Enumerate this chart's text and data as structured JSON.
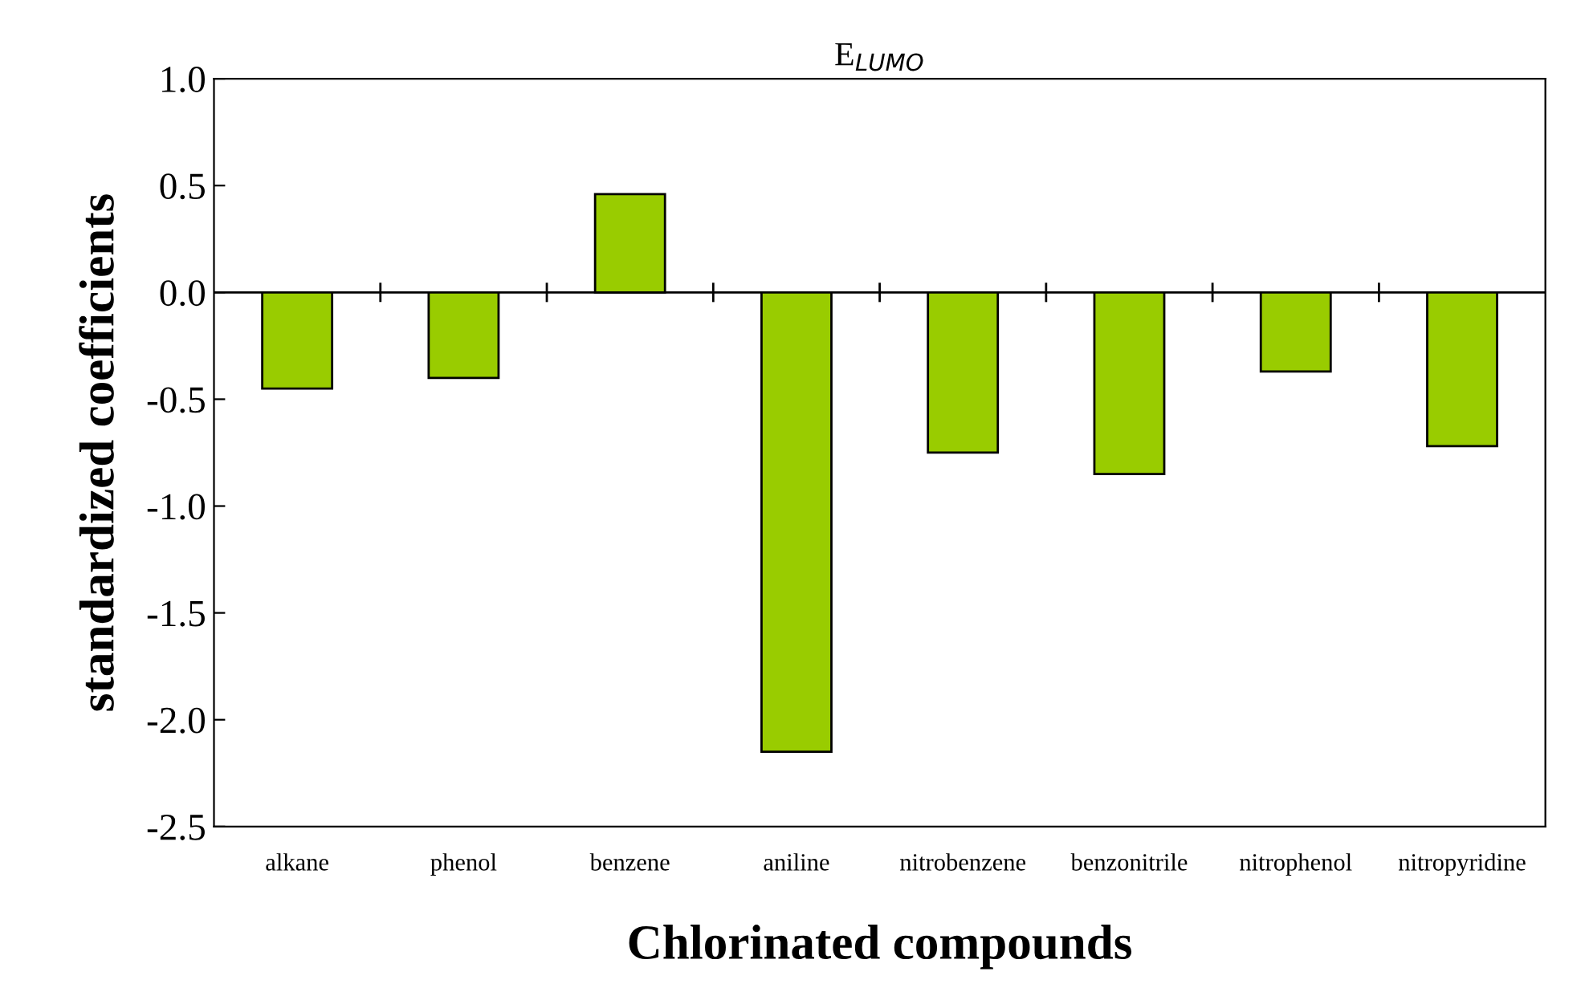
{
  "chart_data": {
    "type": "bar",
    "title": "E$_{LUMO}$",
    "xlabel": "Chlorinated compounds",
    "ylabel": "standardized coefficients",
    "categories": [
      "alkane",
      "phenol",
      "benzene",
      "aniline",
      "nitrobenzene",
      "benzonitrile",
      "nitrophenol",
      "nitropyridine"
    ],
    "values": [
      -0.45,
      -0.4,
      0.46,
      -2.15,
      -0.75,
      -0.85,
      -0.37,
      -0.72
    ],
    "color": "#99cc00",
    "ylim": [
      -2.5,
      1.0
    ],
    "yticks": [
      {
        "value": -2.5,
        "label": "-2.5"
      },
      {
        "value": -2.0,
        "label": "-2.0"
      },
      {
        "value": -1.5,
        "label": "-1.5"
      },
      {
        "value": -1.0,
        "label": "-1.0"
      },
      {
        "value": -0.5,
        "label": "-0.5"
      },
      {
        "value": 0.0,
        "label": "0.0"
      },
      {
        "value": 0.5,
        "label": "0.5"
      },
      {
        "value": 1.0,
        "label": "1.0"
      }
    ],
    "ref_lines": [
      {
        "axis": "y",
        "value": 0,
        "color": "#000000"
      }
    ],
    "grid": false,
    "legend": false
  }
}
